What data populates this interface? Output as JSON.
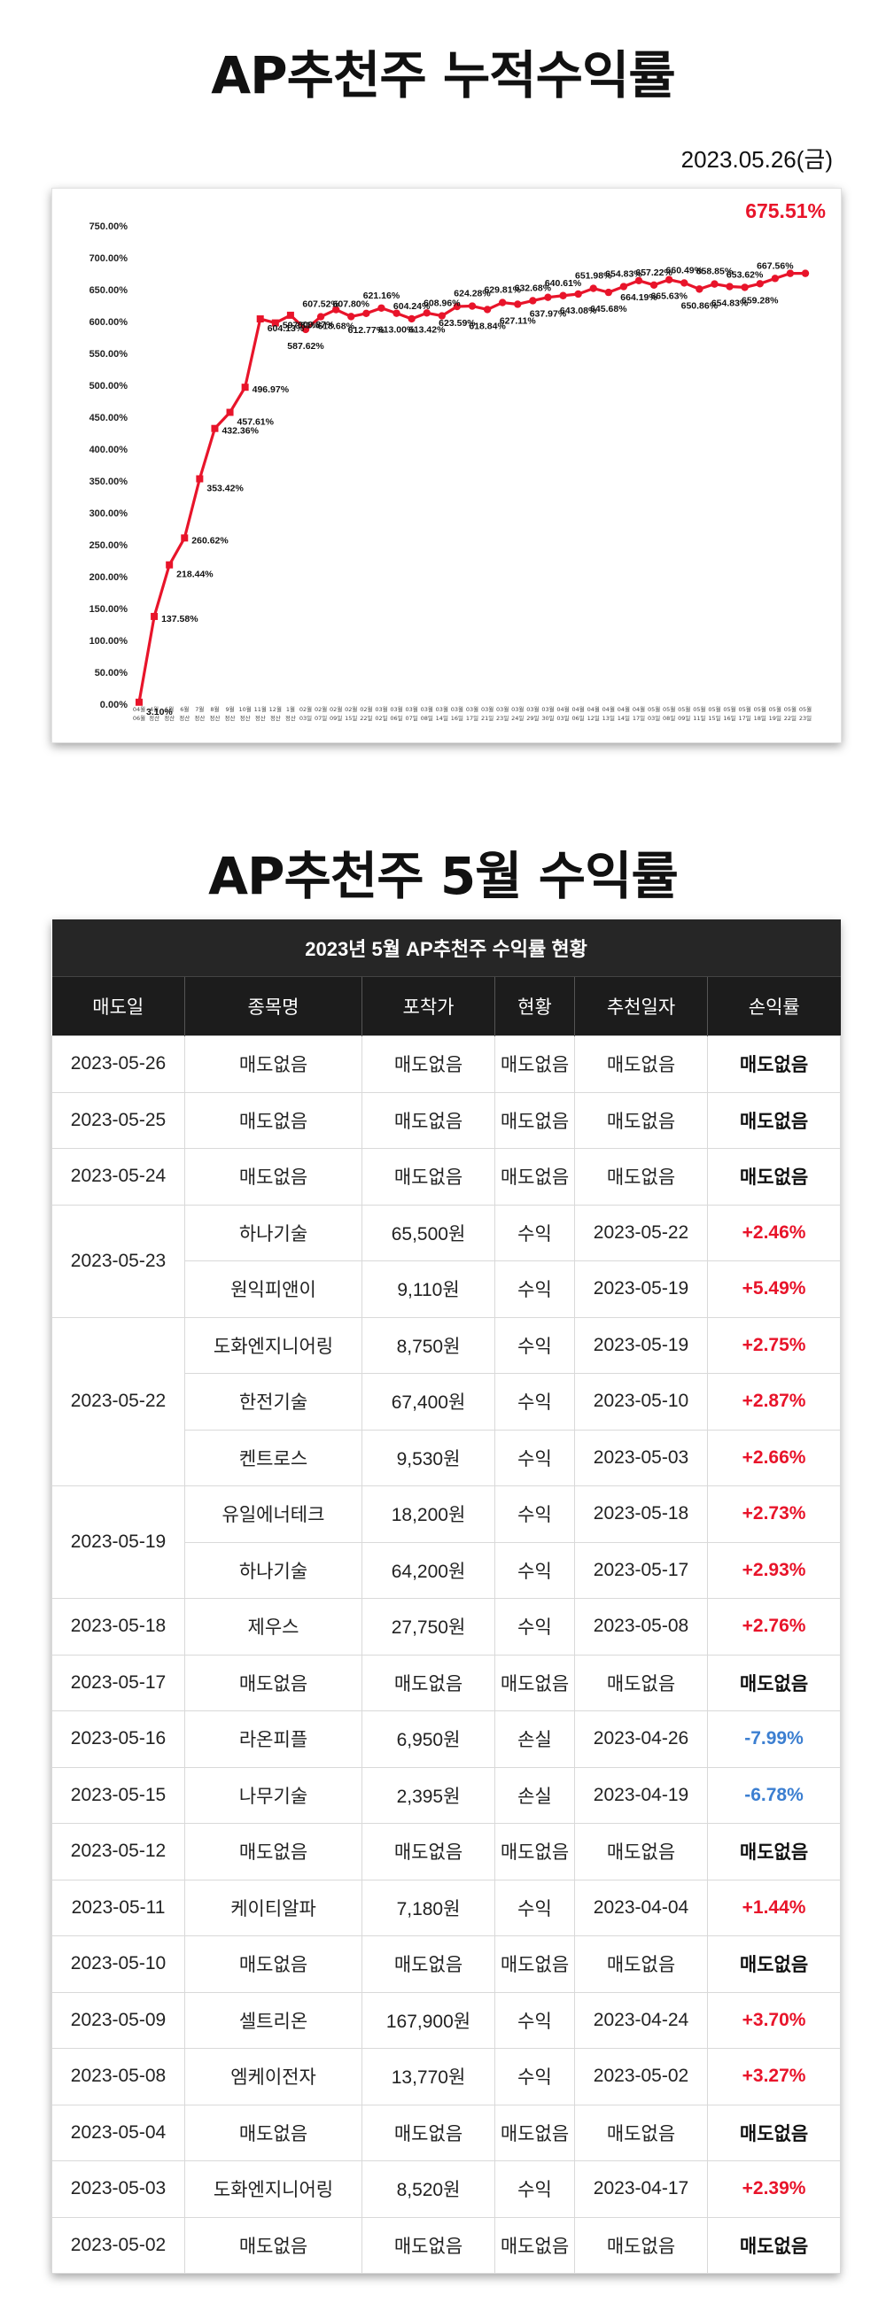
{
  "title_cumulative": "AP추천주 누적수익률",
  "report_date": "2023.05.26(금)",
  "title_monthly": "AP추천주 5월 수익률",
  "chart_data": {
    "type": "line",
    "title": "",
    "highlight_label": "675.51%",
    "color": "#e8142a",
    "highlight_color": "#e8142a",
    "y_ticks": [
      "0.00%",
      "50.00%",
      "100.00%",
      "150.00%",
      "200.00%",
      "250.00%",
      "300.00%",
      "350.00%",
      "400.00%",
      "450.00%",
      "500.00%",
      "550.00%",
      "600.00%",
      "650.00%",
      "700.00%",
      "750.00%"
    ],
    "ylim": [
      0,
      750
    ],
    "x_labels": [
      [
        "04월",
        "06월"
      ],
      [
        "4월",
        "정산"
      ],
      [
        "5월",
        "정산"
      ],
      [
        "6월",
        "정산"
      ],
      [
        "7월",
        "정산"
      ],
      [
        "8월",
        "정산"
      ],
      [
        "9월",
        "정산"
      ],
      [
        "10월",
        "정산"
      ],
      [
        "11월",
        "정산"
      ],
      [
        "12월",
        "정산"
      ],
      [
        "1월",
        "정산"
      ],
      [
        "02월",
        "03일"
      ],
      [
        "02월",
        "07일"
      ],
      [
        "02월",
        "09일"
      ],
      [
        "02월",
        "15일"
      ],
      [
        "02월",
        "22일"
      ],
      [
        "03월",
        "02일"
      ],
      [
        "03월",
        "06일"
      ],
      [
        "03월",
        "07일"
      ],
      [
        "03월",
        "08일"
      ],
      [
        "03월",
        "14일"
      ],
      [
        "03월",
        "16일"
      ],
      [
        "03월",
        "17일"
      ],
      [
        "03월",
        "21일"
      ],
      [
        "03월",
        "23일"
      ],
      [
        "03월",
        "24일"
      ],
      [
        "03월",
        "29일"
      ],
      [
        "03월",
        "30일"
      ],
      [
        "04월",
        "03일"
      ],
      [
        "04월",
        "06일"
      ],
      [
        "04월",
        "12일"
      ],
      [
        "04월",
        "13일"
      ],
      [
        "04월",
        "14일"
      ],
      [
        "04월",
        "17일"
      ],
      [
        "05월",
        "03일"
      ],
      [
        "05월",
        "08일"
      ],
      [
        "05월",
        "09일"
      ],
      [
        "05월",
        "11일"
      ],
      [
        "05월",
        "15일"
      ],
      [
        "05월",
        "16일"
      ],
      [
        "05월",
        "17일"
      ],
      [
        "05월",
        "18일"
      ],
      [
        "05월",
        "19일"
      ],
      [
        "05월",
        "22일"
      ],
      [
        "05월",
        "23일"
      ]
    ],
    "values": [
      3.1,
      137.58,
      218.44,
      260.62,
      353.42,
      432.36,
      457.61,
      496.97,
      604.13,
      597.81,
      609.87,
      587.62,
      607.52,
      618.68,
      607.8,
      612.77,
      621.16,
      613.0,
      604.24,
      613.42,
      608.96,
      623.59,
      624.28,
      618.84,
      629.81,
      627.11,
      632.68,
      637.97,
      640.61,
      643.08,
      651.98,
      645.68,
      654.83,
      664.19,
      657.22,
      665.63,
      660.49,
      650.86,
      658.85,
      654.83,
      653.62,
      659.28,
      667.56,
      675.51,
      675.51
    ],
    "data_labels": [
      "3.10%",
      "137.58%",
      "218.44%",
      "260.62%",
      "353.42%",
      "432.36%",
      "457.61%",
      "496.97%",
      "604.13%",
      "597.81%",
      "609.87%",
      "587.62%",
      "607.52%",
      "618.68%",
      "607.80%",
      "612.77%",
      "621.16%",
      "613.00%",
      "604.24%",
      "613.42%",
      "608.96%",
      "623.59%",
      "624.28%",
      "618.84%",
      "629.81%",
      "627.11%",
      "632.68%",
      "637.97%",
      "640.61%",
      "643.08%",
      "651.98%",
      "645.68%",
      "654.83%",
      "664.19%",
      "657.22%",
      "665.63%",
      "660.49%",
      "650.86%",
      "658.85%",
      "654.83%",
      "653.62%",
      "659.28%",
      "667.56%",
      "",
      ""
    ],
    "grid": false,
    "legend": "none"
  },
  "table": {
    "caption": "2023년 5월 AP추천주 수익률 현황",
    "headers": [
      "매도일",
      "종목명",
      "포착가",
      "현황",
      "추천일자",
      "손익률"
    ],
    "rows": [
      {
        "date": "2023-05-26",
        "date_rows": 1,
        "name": "매도없음",
        "price": "매도없음",
        "status": "매도없음",
        "rec": "매도없음",
        "pl": "매도없음",
        "kind": "none"
      },
      {
        "date": "2023-05-25",
        "date_rows": 1,
        "name": "매도없음",
        "price": "매도없음",
        "status": "매도없음",
        "rec": "매도없음",
        "pl": "매도없음",
        "kind": "none"
      },
      {
        "date": "2023-05-24",
        "date_rows": 1,
        "name": "매도없음",
        "price": "매도없음",
        "status": "매도없음",
        "rec": "매도없음",
        "pl": "매도없음",
        "kind": "none"
      },
      {
        "date": "2023-05-23",
        "date_rows": 2,
        "name": "하나기술",
        "price": "65,500원",
        "status": "수익",
        "rec": "2023-05-22",
        "pl": "+2.46%",
        "kind": "pos"
      },
      {
        "date": "",
        "date_rows": 0,
        "name": "원익피앤이",
        "price": "9,110원",
        "status": "수익",
        "rec": "2023-05-19",
        "pl": "+5.49%",
        "kind": "pos"
      },
      {
        "date": "2023-05-22",
        "date_rows": 3,
        "name": "도화엔지니어링",
        "price": "8,750원",
        "status": "수익",
        "rec": "2023-05-19",
        "pl": "+2.75%",
        "kind": "pos"
      },
      {
        "date": "",
        "date_rows": 0,
        "name": "한전기술",
        "price": "67,400원",
        "status": "수익",
        "rec": "2023-05-10",
        "pl": "+2.87%",
        "kind": "pos"
      },
      {
        "date": "",
        "date_rows": 0,
        "name": "켄트로스",
        "price": "9,530원",
        "status": "수익",
        "rec": "2023-05-03",
        "pl": "+2.66%",
        "kind": "pos"
      },
      {
        "date": "2023-05-19",
        "date_rows": 2,
        "name": "유일에너테크",
        "price": "18,200원",
        "status": "수익",
        "rec": "2023-05-18",
        "pl": "+2.73%",
        "kind": "pos"
      },
      {
        "date": "",
        "date_rows": 0,
        "name": "하나기술",
        "price": "64,200원",
        "status": "수익",
        "rec": "2023-05-17",
        "pl": "+2.93%",
        "kind": "pos"
      },
      {
        "date": "2023-05-18",
        "date_rows": 1,
        "name": "제우스",
        "price": "27,750원",
        "status": "수익",
        "rec": "2023-05-08",
        "pl": "+2.76%",
        "kind": "pos"
      },
      {
        "date": "2023-05-17",
        "date_rows": 1,
        "name": "매도없음",
        "price": "매도없음",
        "status": "매도없음",
        "rec": "매도없음",
        "pl": "매도없음",
        "kind": "none"
      },
      {
        "date": "2023-05-16",
        "date_rows": 1,
        "name": "라온피플",
        "price": "6,950원",
        "status": "손실",
        "rec": "2023-04-26",
        "pl": "-7.99%",
        "kind": "neg"
      },
      {
        "date": "2023-05-15",
        "date_rows": 1,
        "name": "나무기술",
        "price": "2,395원",
        "status": "손실",
        "rec": "2023-04-19",
        "pl": "-6.78%",
        "kind": "neg"
      },
      {
        "date": "2023-05-12",
        "date_rows": 1,
        "name": "매도없음",
        "price": "매도없음",
        "status": "매도없음",
        "rec": "매도없음",
        "pl": "매도없음",
        "kind": "none"
      },
      {
        "date": "2023-05-11",
        "date_rows": 1,
        "name": "케이티알파",
        "price": "7,180원",
        "status": "수익",
        "rec": "2023-04-04",
        "pl": "+1.44%",
        "kind": "pos"
      },
      {
        "date": "2023-05-10",
        "date_rows": 1,
        "name": "매도없음",
        "price": "매도없음",
        "status": "매도없음",
        "rec": "매도없음",
        "pl": "매도없음",
        "kind": "none"
      },
      {
        "date": "2023-05-09",
        "date_rows": 1,
        "name": "셀트리온",
        "price": "167,900원",
        "status": "수익",
        "rec": "2023-04-24",
        "pl": "+3.70%",
        "kind": "pos"
      },
      {
        "date": "2023-05-08",
        "date_rows": 1,
        "name": "엠케이전자",
        "price": "13,770원",
        "status": "수익",
        "rec": "2023-05-02",
        "pl": "+3.27%",
        "kind": "pos"
      },
      {
        "date": "2023-05-04",
        "date_rows": 1,
        "name": "매도없음",
        "price": "매도없음",
        "status": "매도없음",
        "rec": "매도없음",
        "pl": "매도없음",
        "kind": "none"
      },
      {
        "date": "2023-05-03",
        "date_rows": 1,
        "name": "도화엔지니어링",
        "price": "8,520원",
        "status": "수익",
        "rec": "2023-04-17",
        "pl": "+2.39%",
        "kind": "pos"
      },
      {
        "date": "2023-05-02",
        "date_rows": 1,
        "name": "매도없음",
        "price": "매도없음",
        "status": "매도없음",
        "rec": "매도없음",
        "pl": "매도없음",
        "kind": "none"
      }
    ]
  }
}
